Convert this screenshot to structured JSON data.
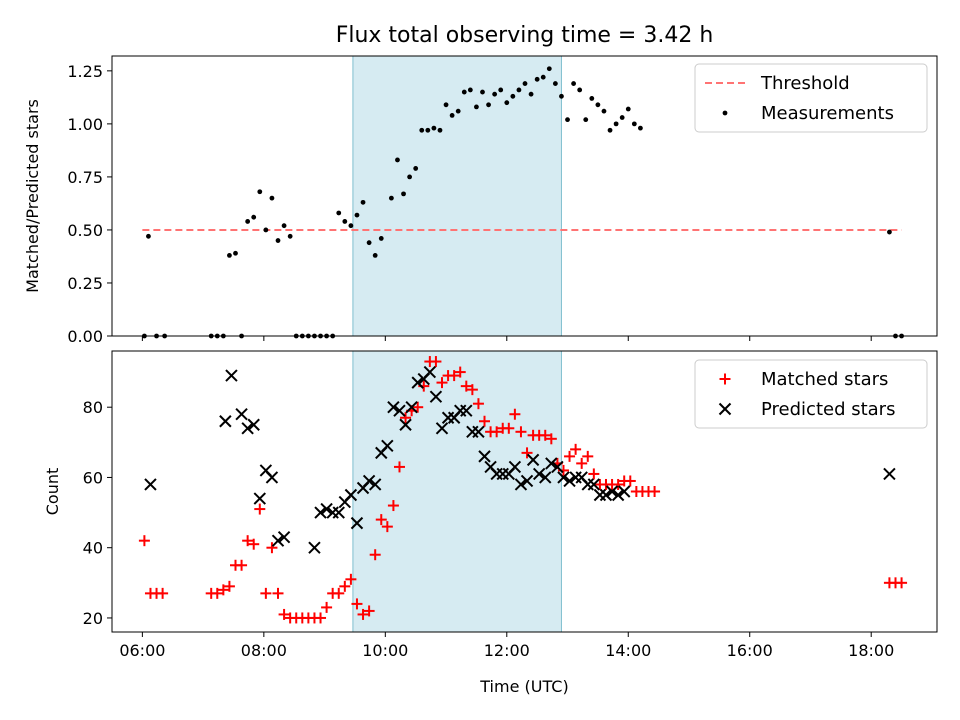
{
  "chart_data": [
    {
      "type": "scatter",
      "title": "Flux total observing time = 3.42 h",
      "ylabel": "Matched/Predicted stars",
      "xlim": [
        "05:30",
        "19:05"
      ],
      "ylim": [
        0,
        1.32
      ],
      "x_ticks": [
        "06:00",
        "08:00",
        "10:00",
        "12:00",
        "14:00",
        "16:00",
        "18:00"
      ],
      "y_ticks": [
        0,
        0.25,
        0.5,
        0.75,
        1.0,
        1.25
      ],
      "y_tick_labels": [
        "0.00",
        "0.25",
        "0.50",
        "0.75",
        "1.00",
        "1.25"
      ],
      "legend_position": "top-right",
      "shaded_region": {
        "start": "09:28",
        "end": "12:54",
        "color": "#add8e6"
      },
      "threshold": {
        "name": "Threshold",
        "value": 0.5,
        "start": "06:00",
        "end": "18:30",
        "color": "#ff7373",
        "style": "dashed"
      },
      "series": [
        {
          "name": "Measurements",
          "marker": "dot",
          "color": "#000000",
          "points": [
            [
              "06:02",
              0
            ],
            [
              "06:06",
              0.47
            ],
            [
              "06:14",
              0
            ],
            [
              "06:22",
              0
            ],
            [
              "07:08",
              0
            ],
            [
              "07:14",
              0
            ],
            [
              "07:20",
              0
            ],
            [
              "07:26",
              0.38
            ],
            [
              "07:32",
              0.39
            ],
            [
              "07:38",
              0
            ],
            [
              "07:44",
              0.54
            ],
            [
              "07:50",
              0.56
            ],
            [
              "07:56",
              0.68
            ],
            [
              "08:02",
              0.5
            ],
            [
              "08:08",
              0.65
            ],
            [
              "08:14",
              0.45
            ],
            [
              "08:20",
              0.52
            ],
            [
              "08:26",
              0.47
            ],
            [
              "08:32",
              0
            ],
            [
              "08:38",
              0
            ],
            [
              "08:44",
              0
            ],
            [
              "08:50",
              0
            ],
            [
              "08:56",
              0
            ],
            [
              "09:02",
              0
            ],
            [
              "09:08",
              0
            ],
            [
              "09:14",
              0.58
            ],
            [
              "09:20",
              0.54
            ],
            [
              "09:26",
              0.52
            ],
            [
              "09:32",
              0.57
            ],
            [
              "09:38",
              0.63
            ],
            [
              "09:44",
              0.44
            ],
            [
              "09:50",
              0.38
            ],
            [
              "09:56",
              0.46
            ],
            [
              "10:06",
              0.65
            ],
            [
              "10:12",
              0.83
            ],
            [
              "10:18",
              0.67
            ],
            [
              "10:24",
              0.75
            ],
            [
              "10:30",
              0.79
            ],
            [
              "10:36",
              0.97
            ],
            [
              "10:42",
              0.97
            ],
            [
              "10:48",
              0.98
            ],
            [
              "10:54",
              0.97
            ],
            [
              "11:00",
              1.09
            ],
            [
              "11:06",
              1.04
            ],
            [
              "11:12",
              1.06
            ],
            [
              "11:18",
              1.15
            ],
            [
              "11:24",
              1.16
            ],
            [
              "11:30",
              1.08
            ],
            [
              "11:36",
              1.15
            ],
            [
              "11:42",
              1.09
            ],
            [
              "11:48",
              1.14
            ],
            [
              "11:54",
              1.16
            ],
            [
              "12:00",
              1.1
            ],
            [
              "12:06",
              1.13
            ],
            [
              "12:12",
              1.16
            ],
            [
              "12:18",
              1.19
            ],
            [
              "12:24",
              1.14
            ],
            [
              "12:30",
              1.21
            ],
            [
              "12:36",
              1.22
            ],
            [
              "12:42",
              1.26
            ],
            [
              "12:48",
              1.19
            ],
            [
              "12:54",
              1.13
            ],
            [
              "13:00",
              1.02
            ],
            [
              "13:06",
              1.19
            ],
            [
              "13:12",
              1.16
            ],
            [
              "13:18",
              1.02
            ],
            [
              "13:24",
              1.12
            ],
            [
              "13:30",
              1.09
            ],
            [
              "13:36",
              1.06
            ],
            [
              "13:42",
              0.97
            ],
            [
              "13:48",
              1.0
            ],
            [
              "13:54",
              1.03
            ],
            [
              "14:00",
              1.07
            ],
            [
              "14:06",
              1.0
            ],
            [
              "14:12",
              0.98
            ],
            [
              "18:18",
              0.49
            ],
            [
              "18:24",
              0
            ],
            [
              "18:30",
              0
            ]
          ]
        },
        {
          "name": "Matched stars",
          "marker": "plus",
          "color": "#ff0000",
          "points": [
            [
              "06:02",
              42
            ],
            [
              "06:08",
              27
            ],
            [
              "06:14",
              27
            ],
            [
              "06:20",
              27
            ],
            [
              "07:08",
              27
            ],
            [
              "07:14",
              27
            ],
            [
              "07:20",
              28
            ],
            [
              "07:26",
              29
            ],
            [
              "07:32",
              35
            ],
            [
              "07:38",
              35
            ],
            [
              "07:44",
              42
            ],
            [
              "07:50",
              41
            ],
            [
              "07:56",
              51
            ],
            [
              "08:02",
              27
            ],
            [
              "08:08",
              40
            ],
            [
              "08:14",
              27
            ],
            [
              "08:20",
              21
            ],
            [
              "08:26",
              20
            ],
            [
              "08:32",
              20
            ],
            [
              "08:38",
              20
            ],
            [
              "08:44",
              20
            ],
            [
              "08:50",
              20
            ],
            [
              "08:56",
              20
            ],
            [
              "09:02",
              23
            ],
            [
              "09:08",
              27
            ],
            [
              "09:14",
              27
            ],
            [
              "09:20",
              29
            ],
            [
              "09:26",
              31
            ],
            [
              "09:32",
              24
            ],
            [
              "09:38",
              21
            ],
            [
              "09:44",
              22
            ],
            [
              "09:50",
              38
            ],
            [
              "09:56",
              48
            ],
            [
              "10:02",
              46
            ],
            [
              "10:08",
              52
            ],
            [
              "10:14",
              63
            ],
            [
              "10:20",
              77
            ],
            [
              "10:26",
              79
            ],
            [
              "10:32",
              80
            ],
            [
              "10:38",
              86
            ],
            [
              "10:44",
              93
            ],
            [
              "10:50",
              93
            ],
            [
              "10:56",
              87
            ],
            [
              "11:02",
              89
            ],
            [
              "11:08",
              89
            ],
            [
              "11:14",
              90
            ],
            [
              "11:20",
              86
            ],
            [
              "11:26",
              85
            ],
            [
              "11:32",
              81
            ],
            [
              "11:38",
              76
            ],
            [
              "11:44",
              73
            ],
            [
              "11:50",
              73
            ],
            [
              "11:56",
              74
            ],
            [
              "12:02",
              74
            ],
            [
              "12:08",
              78
            ],
            [
              "12:14",
              73
            ],
            [
              "12:20",
              67
            ],
            [
              "12:26",
              72
            ],
            [
              "12:32",
              72
            ],
            [
              "12:38",
              72
            ],
            [
              "12:44",
              71
            ],
            [
              "12:50",
              64
            ],
            [
              "12:56",
              62
            ],
            [
              "13:02",
              66
            ],
            [
              "13:08",
              68
            ],
            [
              "13:14",
              64
            ],
            [
              "13:20",
              66
            ],
            [
              "13:26",
              61
            ],
            [
              "13:32",
              58
            ],
            [
              "13:38",
              58
            ],
            [
              "13:44",
              58
            ],
            [
              "13:50",
              58
            ],
            [
              "13:56",
              59
            ],
            [
              "14:02",
              59
            ],
            [
              "14:08",
              56
            ],
            [
              "14:14",
              56
            ],
            [
              "14:20",
              56
            ],
            [
              "14:26",
              56
            ],
            [
              "18:18",
              30
            ],
            [
              "18:24",
              30
            ],
            [
              "18:30",
              30
            ]
          ]
        },
        {
          "name": "Predicted stars",
          "marker": "x",
          "color": "#000000",
          "points": [
            [
              "06:08",
              58
            ],
            [
              "07:22",
              76
            ],
            [
              "07:28",
              89
            ],
            [
              "07:38",
              78
            ],
            [
              "07:44",
              74
            ],
            [
              "07:50",
              75
            ],
            [
              "07:56",
              54
            ],
            [
              "08:02",
              62
            ],
            [
              "08:08",
              60
            ],
            [
              "08:14",
              42
            ],
            [
              "08:20",
              43
            ],
            [
              "08:50",
              40
            ],
            [
              "08:56",
              50
            ],
            [
              "09:02",
              51
            ],
            [
              "09:08",
              50
            ],
            [
              "09:14",
              50
            ],
            [
              "09:20",
              53
            ],
            [
              "09:26",
              55
            ],
            [
              "09:32",
              47
            ],
            [
              "09:38",
              57
            ],
            [
              "09:44",
              59
            ],
            [
              "09:50",
              58
            ],
            [
              "09:56",
              67
            ],
            [
              "10:02",
              69
            ],
            [
              "10:08",
              80
            ],
            [
              "10:14",
              79
            ],
            [
              "10:20",
              75
            ],
            [
              "10:26",
              80
            ],
            [
              "10:32",
              87
            ],
            [
              "10:38",
              88
            ],
            [
              "10:44",
              90
            ],
            [
              "10:50",
              83
            ],
            [
              "10:56",
              74
            ],
            [
              "11:02",
              77
            ],
            [
              "11:08",
              77
            ],
            [
              "11:14",
              79
            ],
            [
              "11:20",
              79
            ],
            [
              "11:26",
              73
            ],
            [
              "11:32",
              73
            ],
            [
              "11:38",
              66
            ],
            [
              "11:44",
              63
            ],
            [
              "11:50",
              61
            ],
            [
              "11:56",
              61
            ],
            [
              "12:02",
              61
            ],
            [
              "12:08",
              63
            ],
            [
              "12:14",
              58
            ],
            [
              "12:20",
              59
            ],
            [
              "12:26",
              65
            ],
            [
              "12:32",
              61
            ],
            [
              "12:38",
              60
            ],
            [
              "12:44",
              64
            ],
            [
              "12:50",
              63
            ],
            [
              "12:56",
              60
            ],
            [
              "13:02",
              59
            ],
            [
              "13:08",
              60
            ],
            [
              "13:14",
              60
            ],
            [
              "13:20",
              58
            ],
            [
              "13:26",
              58
            ],
            [
              "13:32",
              55
            ],
            [
              "13:38",
              55
            ],
            [
              "13:44",
              56
            ],
            [
              "13:50",
              55
            ],
            [
              "13:56",
              56
            ],
            [
              "18:18",
              61
            ]
          ]
        }
      ]
    },
    {
      "type": "scatter",
      "title": "",
      "xlabel": "Time (UTC)",
      "ylabel": "Count",
      "xlim": [
        "05:30",
        "19:05"
      ],
      "ylim": [
        16,
        96
      ],
      "x_ticks": [
        "06:00",
        "08:00",
        "10:00",
        "12:00",
        "14:00",
        "16:00",
        "18:00"
      ],
      "y_ticks": [
        20,
        40,
        60,
        80
      ],
      "y_tick_labels": [
        "20",
        "40",
        "60",
        "80"
      ],
      "legend_position": "top-right",
      "shaded_region": {
        "start": "09:28",
        "end": "12:54",
        "color": "#add8e6"
      },
      "series_refs": [
        "Matched stars",
        "Predicted stars"
      ]
    }
  ]
}
